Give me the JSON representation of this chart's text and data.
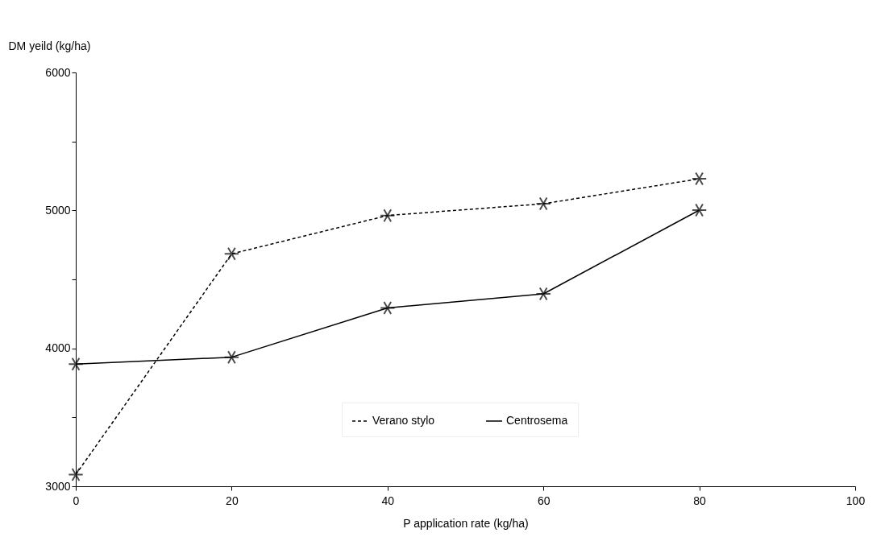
{
  "chart_data": {
    "type": "line",
    "xlabel": "P  application rate (kg/ha)",
    "ylabel": "DM yeild (kg/ha)",
    "x": [
      0,
      20,
      40,
      60,
      80
    ],
    "series": [
      {
        "name": "Verano stylo",
        "color": "#000000",
        "line_style": "dashed",
        "values": [
          3085,
          4685,
          4963,
          5048,
          5229
        ]
      },
      {
        "name": "Centrosema",
        "color": "#000000",
        "line_style": "solid",
        "values": [
          3885,
          3936,
          4293,
          4395,
          5002
        ]
      }
    ],
    "xlim": [
      0,
      100
    ],
    "xticks": [
      0,
      20,
      40,
      60,
      80,
      100
    ],
    "ylim": [
      3000,
      6000
    ],
    "yticks": [
      3000,
      {
        "value": 3500,
        "label": null
      },
      4000,
      {
        "value": 4500,
        "label": null
      },
      5000,
      {
        "value": 5500,
        "label": null
      },
      6000
    ],
    "grid": false,
    "legend": "bottom",
    "marker": "cross"
  }
}
